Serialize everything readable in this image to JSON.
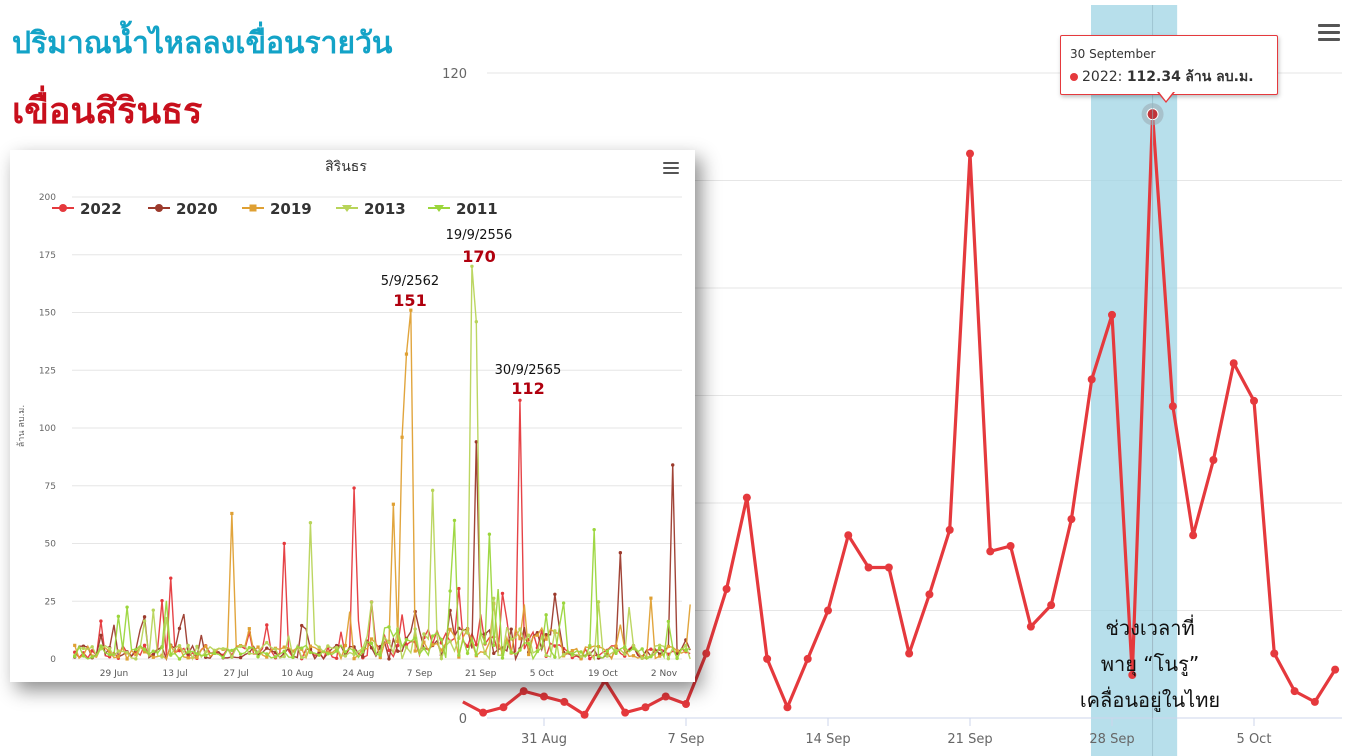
{
  "header": {
    "title_line1": "ปริมาณน้ำไหลลงเขื่อนรายวัน",
    "title_line2": "เขื่อนสิรินธร"
  },
  "tooltip": {
    "date": "30 September",
    "series": "2022",
    "value_text": "112.34",
    "unit": "ล้าน ลบ.ม."
  },
  "storm_note": [
    "ช่วงเวลาที่",
    "พายุ “โนรู”",
    "เคลื่อนอยู่ในไทย"
  ],
  "colors": {
    "highlight_band": "#9fd4e4",
    "series_2022": "#e5393d",
    "series_2020": "#9c3a2c",
    "series_2019": "#dfa033",
    "series_2013": "#b8d45a",
    "series_2011": "#9bd63c",
    "annotation_red": "#b0000e"
  },
  "chart_data": [
    {
      "type": "line",
      "title": "",
      "xlabel": "",
      "ylabel": "",
      "ylim": [
        0,
        120
      ],
      "y_ticks": [
        "0",
        "120"
      ],
      "x_ticks": [
        "31 Aug",
        "7 Sep",
        "14 Sep",
        "21 Sep",
        "28 Sep",
        "5 Oct"
      ],
      "highlight_band": {
        "from": "28 Sep",
        "to": "2 Oct"
      },
      "series": [
        {
          "name": "2022",
          "values": [
            {
              "x": "27 Aug",
              "y": 3
            },
            {
              "x": "28 Aug",
              "y": 1
            },
            {
              "x": "29 Aug",
              "y": 2
            },
            {
              "x": "30 Aug",
              "y": 5
            },
            {
              "x": "31 Aug",
              "y": 4
            },
            {
              "x": "1 Sep",
              "y": 3
            },
            {
              "x": "2 Sep",
              "y": 0.6
            },
            {
              "x": "3 Sep",
              "y": 7
            },
            {
              "x": "4 Sep",
              "y": 1
            },
            {
              "x": "5 Sep",
              "y": 2
            },
            {
              "x": "6 Sep",
              "y": 4
            },
            {
              "x": "7 Sep",
              "y": 2.6
            },
            {
              "x": "8 Sep",
              "y": 12
            },
            {
              "x": "9 Sep",
              "y": 24
            },
            {
              "x": "10 Sep",
              "y": 41
            },
            {
              "x": "11 Sep",
              "y": 11
            },
            {
              "x": "12 Sep",
              "y": 2
            },
            {
              "x": "13 Sep",
              "y": 11
            },
            {
              "x": "14 Sep",
              "y": 20
            },
            {
              "x": "15 Sep",
              "y": 34
            },
            {
              "x": "16 Sep",
              "y": 28
            },
            {
              "x": "17 Sep",
              "y": 28
            },
            {
              "x": "18 Sep",
              "y": 12
            },
            {
              "x": "19 Sep",
              "y": 23
            },
            {
              "x": "20 Sep",
              "y": 35
            },
            {
              "x": "21 Sep",
              "y": 105
            },
            {
              "x": "22 Sep",
              "y": 31
            },
            {
              "x": "23 Sep",
              "y": 32
            },
            {
              "x": "24 Sep",
              "y": 17
            },
            {
              "x": "25 Sep",
              "y": 21
            },
            {
              "x": "26 Sep",
              "y": 37
            },
            {
              "x": "27 Sep",
              "y": 63
            },
            {
              "x": "28 Sep",
              "y": 75
            },
            {
              "x": "29 Sep",
              "y": 8
            },
            {
              "x": "30 Sep",
              "y": 112.34
            },
            {
              "x": "1 Oct",
              "y": 58
            },
            {
              "x": "2 Oct",
              "y": 34
            },
            {
              "x": "3 Oct",
              "y": 48
            },
            {
              "x": "4 Oct",
              "y": 66
            },
            {
              "x": "5 Oct",
              "y": 59
            },
            {
              "x": "6 Oct",
              "y": 12
            },
            {
              "x": "7 Oct",
              "y": 5
            },
            {
              "x": "8 Oct",
              "y": 3
            },
            {
              "x": "9 Oct",
              "y": 9
            }
          ]
        }
      ]
    },
    {
      "type": "line",
      "title": "สิรินธร",
      "ylabel": "ล้าน ลบ.ม.",
      "ylim": [
        0,
        200
      ],
      "y_ticks": [
        "0",
        "25",
        "50",
        "75",
        "100",
        "125",
        "150",
        "175",
        "200"
      ],
      "x_ticks": [
        "29 Jun",
        "13 Jul",
        "27 Jul",
        "10 Aug",
        "24 Aug",
        "7 Sep",
        "21 Sep",
        "5 Oct",
        "19 Oct",
        "2 Nov"
      ],
      "legend": {
        "placement": "top-left",
        "entries": [
          "2022",
          "2020",
          "2019",
          "2013",
          "2011"
        ]
      },
      "annotations": [
        {
          "date_label": "5/9/2562",
          "value_label": "151"
        },
        {
          "date_label": "19/9/2556",
          "value_label": "170"
        },
        {
          "date_label": "30/9/2565",
          "value_label": "112"
        }
      ],
      "series": [
        {
          "name": "2022",
          "peaks": [
            {
              "x": "2019-08-23",
              "y": 74
            },
            {
              "x": "2019-09-30",
              "y": 112
            },
            {
              "x": "2019-08-07",
              "y": 50
            },
            {
              "x": "2019-07-12",
              "y": 35
            }
          ]
        },
        {
          "name": "2020",
          "peaks": [
            {
              "x": "2019-09-20",
              "y": 94
            },
            {
              "x": "2019-11-04",
              "y": 84
            },
            {
              "x": "2019-10-23",
              "y": 46
            }
          ]
        },
        {
          "name": "2019",
          "peaks": [
            {
              "x": "2019-09-05",
              "y": 151
            },
            {
              "x": "2019-09-04",
              "y": 132
            },
            {
              "x": "2019-09-03",
              "y": 96
            },
            {
              "x": "2019-07-26",
              "y": 63
            },
            {
              "x": "2019-09-01",
              "y": 67
            }
          ]
        },
        {
          "name": "2013",
          "peaks": [
            {
              "x": "2019-09-19",
              "y": 170
            },
            {
              "x": "2019-09-20",
              "y": 146
            },
            {
              "x": "2019-09-10",
              "y": 73
            },
            {
              "x": "2019-08-13",
              "y": 59
            }
          ]
        },
        {
          "name": "2011",
          "peaks": [
            {
              "x": "2019-09-15",
              "y": 60
            },
            {
              "x": "2019-09-23",
              "y": 54
            },
            {
              "x": "2019-10-17",
              "y": 56
            }
          ]
        }
      ]
    }
  ]
}
